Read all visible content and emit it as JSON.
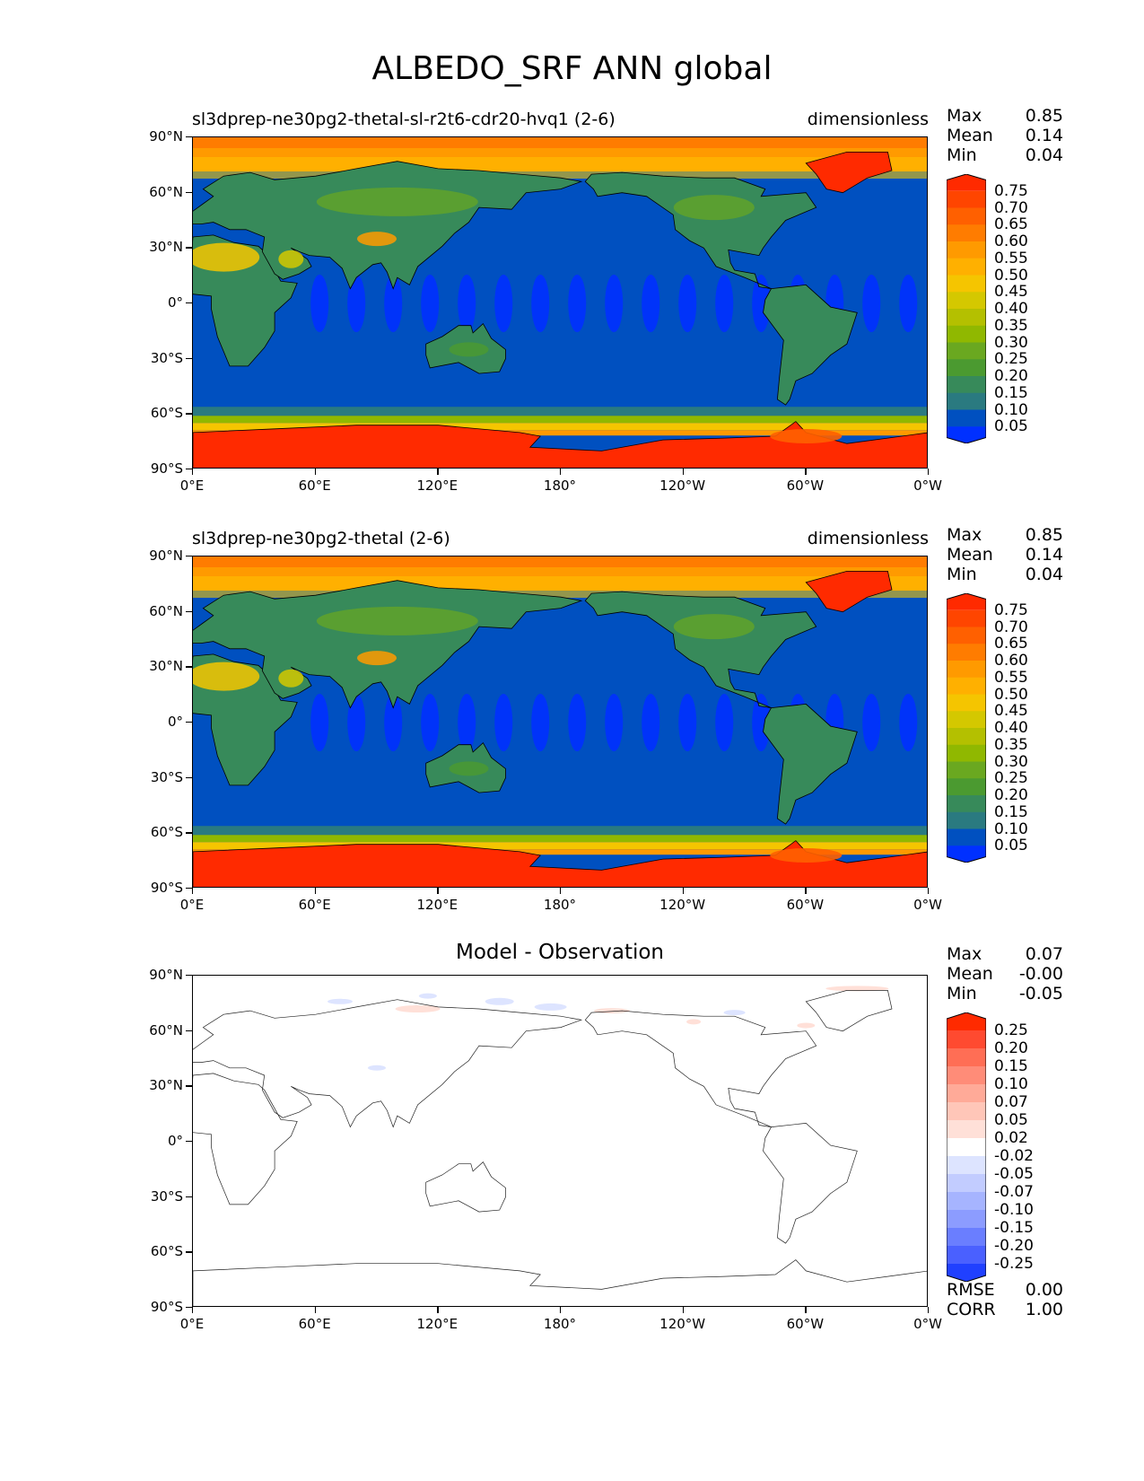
{
  "title": "ALBEDO_SRF ANN global",
  "axes": {
    "y_ticks": [
      "90°N",
      "60°N",
      "30°N",
      "0°",
      "30°S",
      "60°S",
      "90°S"
    ],
    "x_ticks": [
      "0°E",
      "60°E",
      "120°E",
      "180°",
      "120°W",
      "60°W",
      "0°W"
    ]
  },
  "panels": [
    {
      "left_title": "sl3dprep-ne30pg2-thetal-sl-r2t6-cdr20-hvq1 (2-6)",
      "right_title": "dimensionless",
      "stats": [
        {
          "label": "Max",
          "value": "0.85"
        },
        {
          "label": "Mean",
          "value": "0.14"
        },
        {
          "label": "Min",
          "value": "0.04"
        }
      ]
    },
    {
      "left_title": "sl3dprep-ne30pg2-thetal (2-6)",
      "right_title": "dimensionless",
      "stats": [
        {
          "label": "Max",
          "value": "0.85"
        },
        {
          "label": "Mean",
          "value": "0.14"
        },
        {
          "label": "Min",
          "value": "0.04"
        }
      ]
    },
    {
      "center_title": "Model - Observation",
      "stats": [
        {
          "label": "Max",
          "value": "0.07"
        },
        {
          "label": "Mean",
          "value": "-0.00"
        },
        {
          "label": "Min",
          "value": "-0.05"
        }
      ],
      "bottom_stats": [
        {
          "label": "RMSE",
          "value": "0.00"
        },
        {
          "label": "CORR",
          "value": "1.00"
        }
      ]
    }
  ],
  "colorbar_main": {
    "labels": [
      "0.75",
      "0.70",
      "0.65",
      "0.60",
      "0.55",
      "0.50",
      "0.45",
      "0.40",
      "0.35",
      "0.30",
      "0.25",
      "0.20",
      "0.15",
      "0.10",
      "0.05"
    ],
    "colors": [
      "#ff2a00",
      "#ff4500",
      "#ff6000",
      "#ff7c00",
      "#ff9a00",
      "#ffb000",
      "#f5c500",
      "#d4c800",
      "#b4c000",
      "#90b800",
      "#6aa820",
      "#4b9a30",
      "#378a5a",
      "#2a7a80",
      "#0050c0",
      "#0030ff"
    ]
  },
  "colorbar_diff": {
    "labels": [
      "0.25",
      "0.20",
      "0.15",
      "0.10",
      "0.07",
      "0.05",
      "0.02",
      "-0.02",
      "-0.05",
      "-0.07",
      "-0.10",
      "-0.15",
      "-0.20",
      "-0.25"
    ],
    "colors": [
      "#ff2a00",
      "#ff4a30",
      "#ff6e55",
      "#ff8c78",
      "#ffaa98",
      "#ffc6b8",
      "#ffe0d8",
      "#ffffff",
      "#dde4ff",
      "#c2ccff",
      "#a6b4ff",
      "#8c9cff",
      "#6a7eff",
      "#4a60ff",
      "#2040ff"
    ]
  },
  "chart_data": [
    {
      "type": "heatmap",
      "title": "sl3dprep-ne30pg2-thetal-sl-r2t6-cdr20-hvq1 (2-6)",
      "units": "dimensionless",
      "projection": "lon 0E to 0W, lat 90S to 90N",
      "max": 0.85,
      "mean": 0.14,
      "min": 0.04,
      "levels": [
        0.05,
        0.1,
        0.15,
        0.2,
        0.25,
        0.3,
        0.35,
        0.4,
        0.45,
        0.5,
        0.55,
        0.6,
        0.65,
        0.7,
        0.75
      ]
    },
    {
      "type": "heatmap",
      "title": "sl3dprep-ne30pg2-thetal (2-6)",
      "units": "dimensionless",
      "max": 0.85,
      "mean": 0.14,
      "min": 0.04,
      "levels": [
        0.05,
        0.1,
        0.15,
        0.2,
        0.25,
        0.3,
        0.35,
        0.4,
        0.45,
        0.5,
        0.55,
        0.6,
        0.65,
        0.7,
        0.75
      ]
    },
    {
      "type": "heatmap",
      "title": "Model - Observation",
      "max": 0.07,
      "mean": -0.0,
      "min": -0.05,
      "rmse": 0.0,
      "corr": 1.0,
      "levels": [
        -0.25,
        -0.2,
        -0.15,
        -0.1,
        -0.07,
        -0.05,
        -0.02,
        0.02,
        0.05,
        0.07,
        0.1,
        0.15,
        0.2,
        0.25
      ]
    }
  ]
}
